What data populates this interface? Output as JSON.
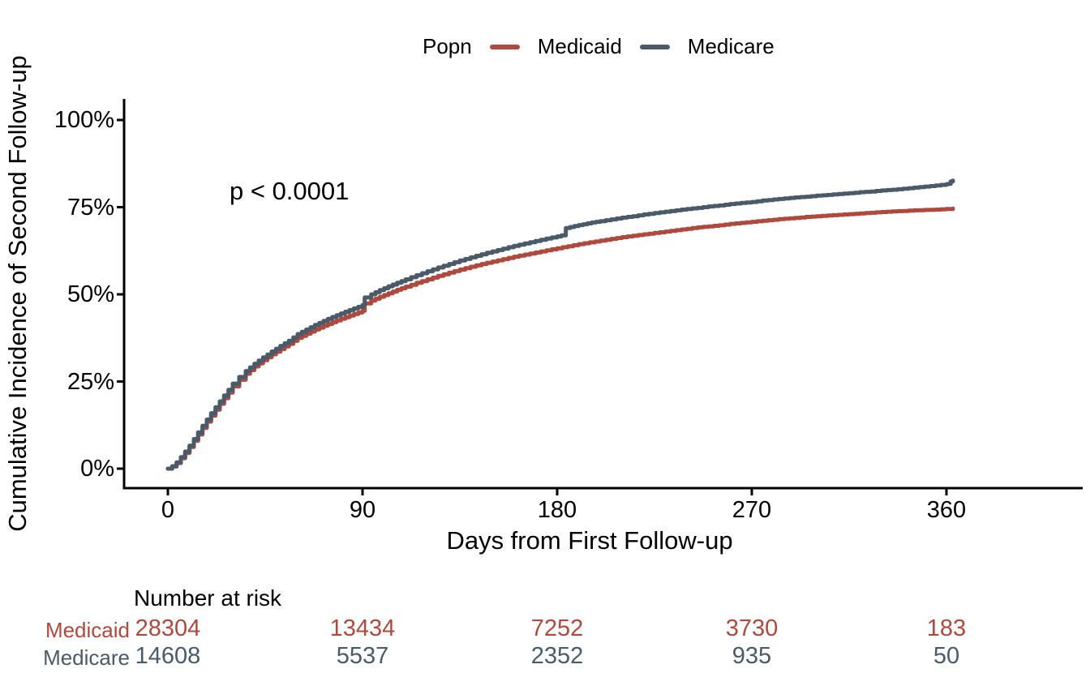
{
  "legend": {
    "title": "Popn"
  },
  "annotation": {
    "text": "p < 0.0001"
  },
  "chart_data": {
    "type": "line",
    "subtype": "cumulative-incidence-step-curves",
    "title": "",
    "xlabel": "Days from First Follow-up",
    "ylabel": "Cumulative Incidence of Second Follow-up",
    "xlim": [
      -20,
      425
    ],
    "ylim": [
      0,
      100
    ],
    "x_ticks": [
      0,
      90,
      180,
      270,
      360
    ],
    "x_tick_labels": [
      "0",
      "90",
      "180",
      "270",
      "360"
    ],
    "y_ticks": [
      0,
      25,
      50,
      75,
      100
    ],
    "y_tick_labels": [
      "0%",
      "25%",
      "50%",
      "75%",
      "100%"
    ],
    "grid": false,
    "legend_position": "top-center",
    "axis_color": "#000000",
    "series": [
      {
        "name": "Medicaid",
        "color": "#AF493E",
        "points_day_pct": [
          [
            0,
            0
          ],
          [
            2,
            0.6
          ],
          [
            4,
            1.6
          ],
          [
            6,
            3
          ],
          [
            8,
            4.5
          ],
          [
            10,
            6.2
          ],
          [
            12,
            8
          ],
          [
            14,
            9.8
          ],
          [
            16,
            11.7
          ],
          [
            18,
            13.5
          ],
          [
            20,
            15.2
          ],
          [
            22,
            16.9
          ],
          [
            24,
            18.6
          ],
          [
            26,
            20.2
          ],
          [
            28,
            21.8
          ],
          [
            30,
            23.6
          ],
          [
            33,
            25.5
          ],
          [
            36,
            27.2
          ],
          [
            40,
            29.3
          ],
          [
            44,
            31.1
          ],
          [
            48,
            32.8
          ],
          [
            52,
            34.3
          ],
          [
            56,
            35.8
          ],
          [
            60,
            37.5
          ],
          [
            64,
            38.7
          ],
          [
            68,
            39.9
          ],
          [
            72,
            41
          ],
          [
            76,
            42
          ],
          [
            80,
            43
          ],
          [
            84,
            43.9
          ],
          [
            88,
            44.8
          ],
          [
            90,
            45.3
          ],
          [
            91,
            47.4
          ],
          [
            94,
            48.2
          ],
          [
            98,
            49.3
          ],
          [
            102,
            50.3
          ],
          [
            106,
            51.3
          ],
          [
            110,
            52.2
          ],
          [
            115,
            53.3
          ],
          [
            120,
            54.3
          ],
          [
            125,
            55.3
          ],
          [
            130,
            56.2
          ],
          [
            135,
            57.1
          ],
          [
            140,
            57.9
          ],
          [
            145,
            58.7
          ],
          [
            150,
            59.4
          ],
          [
            155,
            60.1
          ],
          [
            160,
            60.8
          ],
          [
            165,
            61.4
          ],
          [
            170,
            62
          ],
          [
            175,
            62.6
          ],
          [
            180,
            63.2
          ],
          [
            185,
            63.8
          ],
          [
            190,
            64.4
          ],
          [
            195,
            64.9
          ],
          [
            200,
            65.4
          ],
          [
            205,
            65.9
          ],
          [
            210,
            66.4
          ],
          [
            215,
            66.8
          ],
          [
            220,
            67.2
          ],
          [
            225,
            67.6
          ],
          [
            230,
            68
          ],
          [
            235,
            68.4
          ],
          [
            240,
            68.8
          ],
          [
            245,
            69.2
          ],
          [
            250,
            69.5
          ],
          [
            255,
            69.8
          ],
          [
            260,
            70.2
          ],
          [
            265,
            70.5
          ],
          [
            270,
            70.8
          ],
          [
            275,
            71.1
          ],
          [
            280,
            71.4
          ],
          [
            285,
            71.7
          ],
          [
            290,
            71.9
          ],
          [
            295,
            72.2
          ],
          [
            300,
            72.4
          ],
          [
            305,
            72.6
          ],
          [
            310,
            72.8
          ],
          [
            315,
            73
          ],
          [
            320,
            73.2
          ],
          [
            325,
            73.4
          ],
          [
            330,
            73.6
          ],
          [
            335,
            73.8
          ],
          [
            340,
            73.9
          ],
          [
            345,
            74.1
          ],
          [
            350,
            74.2
          ],
          [
            355,
            74.3
          ],
          [
            360,
            74.5
          ],
          [
            363,
            74.6
          ]
        ]
      },
      {
        "name": "Medicare",
        "color": "#4A5A69",
        "points_day_pct": [
          [
            0,
            0
          ],
          [
            2,
            0.7
          ],
          [
            4,
            1.8
          ],
          [
            6,
            3.3
          ],
          [
            8,
            4.9
          ],
          [
            10,
            6.6
          ],
          [
            12,
            8.5
          ],
          [
            14,
            10.4
          ],
          [
            16,
            12.3
          ],
          [
            18,
            14.1
          ],
          [
            20,
            15.9
          ],
          [
            22,
            17.6
          ],
          [
            24,
            19.3
          ],
          [
            26,
            21
          ],
          [
            28,
            22.6
          ],
          [
            30,
            24.4
          ],
          [
            33,
            26.3
          ],
          [
            36,
            28
          ],
          [
            40,
            30.1
          ],
          [
            44,
            31.9
          ],
          [
            48,
            33.6
          ],
          [
            52,
            35.2
          ],
          [
            56,
            36.7
          ],
          [
            60,
            38.6
          ],
          [
            64,
            39.9
          ],
          [
            68,
            41.2
          ],
          [
            72,
            42.4
          ],
          [
            76,
            43.5
          ],
          [
            80,
            44.5
          ],
          [
            84,
            45.5
          ],
          [
            88,
            46.4
          ],
          [
            90,
            46.9
          ],
          [
            91,
            49.1
          ],
          [
            94,
            50
          ],
          [
            98,
            51.2
          ],
          [
            102,
            52.3
          ],
          [
            106,
            53.3
          ],
          [
            110,
            54.3
          ],
          [
            115,
            55.5
          ],
          [
            120,
            56.6
          ],
          [
            125,
            57.7
          ],
          [
            130,
            58.7
          ],
          [
            135,
            59.7
          ],
          [
            140,
            60.6
          ],
          [
            145,
            61.5
          ],
          [
            150,
            62.3
          ],
          [
            155,
            63.1
          ],
          [
            160,
            63.9
          ],
          [
            165,
            64.6
          ],
          [
            170,
            65.3
          ],
          [
            175,
            66
          ],
          [
            180,
            66.6
          ],
          [
            182,
            66.9
          ],
          [
            184,
            69
          ],
          [
            188,
            69.6
          ],
          [
            192,
            70.1
          ],
          [
            196,
            70.6
          ],
          [
            200,
            71
          ],
          [
            205,
            71.5
          ],
          [
            210,
            72
          ],
          [
            215,
            72.4
          ],
          [
            220,
            72.9
          ],
          [
            225,
            73.3
          ],
          [
            230,
            73.7
          ],
          [
            235,
            74.1
          ],
          [
            240,
            74.5
          ],
          [
            245,
            74.8
          ],
          [
            250,
            75.2
          ],
          [
            255,
            75.5
          ],
          [
            260,
            75.9
          ],
          [
            265,
            76.2
          ],
          [
            270,
            76.5
          ],
          [
            275,
            76.9
          ],
          [
            280,
            77.2
          ],
          [
            285,
            77.5
          ],
          [
            290,
            77.8
          ],
          [
            295,
            78
          ],
          [
            300,
            78.3
          ],
          [
            305,
            78.5
          ],
          [
            310,
            78.8
          ],
          [
            315,
            79
          ],
          [
            320,
            79.3
          ],
          [
            325,
            79.5
          ],
          [
            330,
            79.8
          ],
          [
            335,
            80
          ],
          [
            340,
            80.3
          ],
          [
            345,
            80.6
          ],
          [
            350,
            80.9
          ],
          [
            355,
            81.2
          ],
          [
            360,
            81.6
          ],
          [
            361,
            81.7
          ],
          [
            362,
            82.4
          ],
          [
            363,
            82.6
          ]
        ]
      }
    ]
  },
  "risk_table": {
    "title": "Number at risk",
    "column_days": [
      0,
      90,
      180,
      270,
      360
    ],
    "rows": [
      {
        "label": "Medicaid",
        "color": "#AF493E",
        "values": [
          "28304",
          "13434",
          "7252",
          "3730",
          "183"
        ]
      },
      {
        "label": "Medicare",
        "color": "#4A5A69",
        "values": [
          "14608",
          "5537",
          "2352",
          "935",
          "50"
        ]
      }
    ]
  }
}
